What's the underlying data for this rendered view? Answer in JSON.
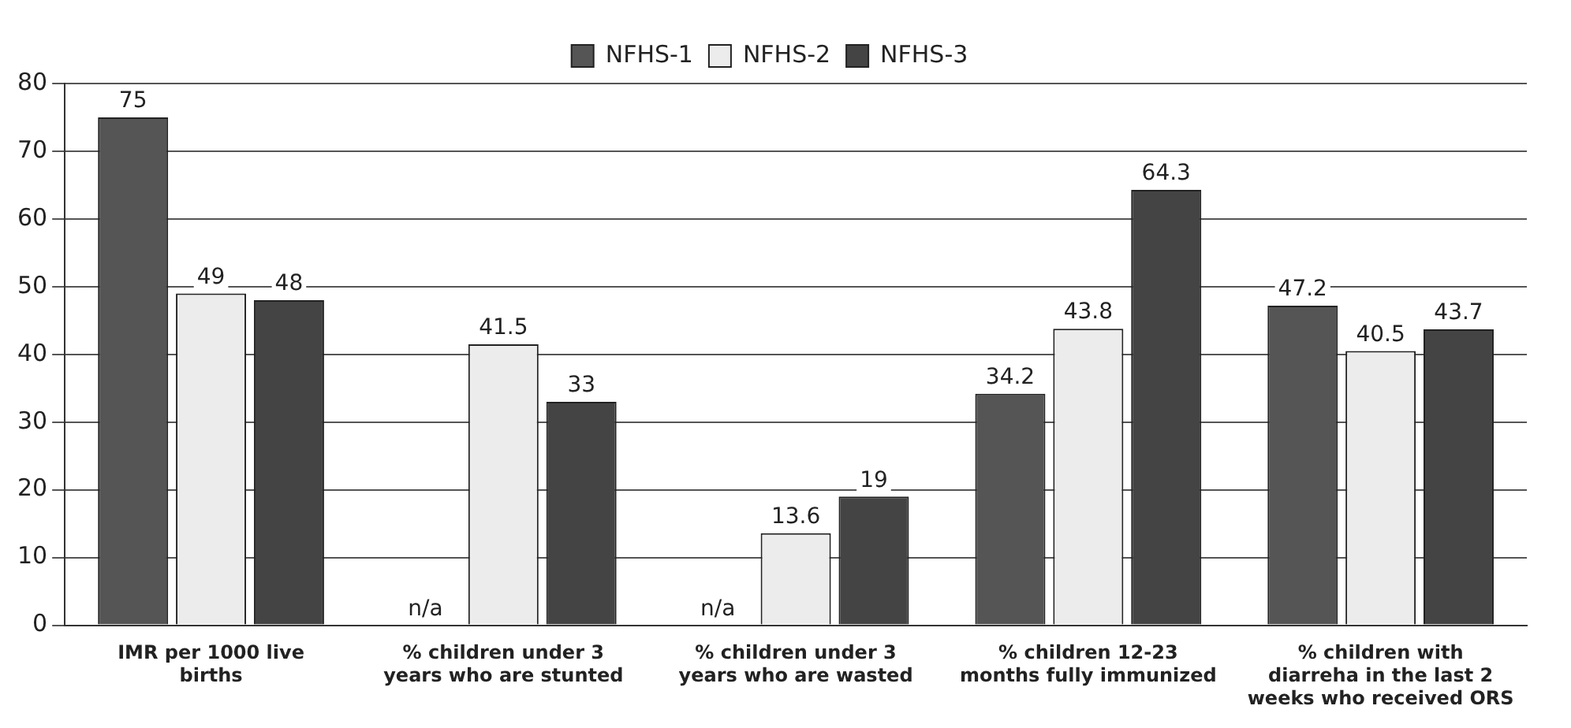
{
  "chart_data": {
    "type": "bar",
    "categories": [
      "IMR per 1000 live births",
      "% children under 3 years who are stunted",
      "% children under 3 years who are wasted",
      "% children 12-23 months fully immunized",
      "% children with diarreha in the last 2 weeks who received ORS"
    ],
    "series": [
      {
        "name": "NFHS-1",
        "color": "#555555",
        "values": [
          75,
          null,
          null,
          34.2,
          47.2
        ],
        "value_labels": [
          "75",
          "n/a",
          "n/a",
          "34.2",
          "47.2"
        ]
      },
      {
        "name": "NFHS-2",
        "color": "#ececec",
        "values": [
          49,
          41.5,
          13.6,
          43.8,
          40.5
        ],
        "value_labels": [
          "49",
          "41.5",
          "13.6",
          "43.8",
          "40.5"
        ]
      },
      {
        "name": "NFHS-3",
        "color": "#444444",
        "values": [
          48,
          33,
          19,
          64.3,
          43.7
        ],
        "value_labels": [
          "48",
          "33",
          "19",
          "64.3",
          "43.7"
        ]
      }
    ],
    "ylim": [
      0,
      80
    ],
    "yticks": [
      0,
      10,
      20,
      30,
      40,
      50,
      60,
      70,
      80
    ],
    "grid": "y",
    "legend": "top"
  }
}
